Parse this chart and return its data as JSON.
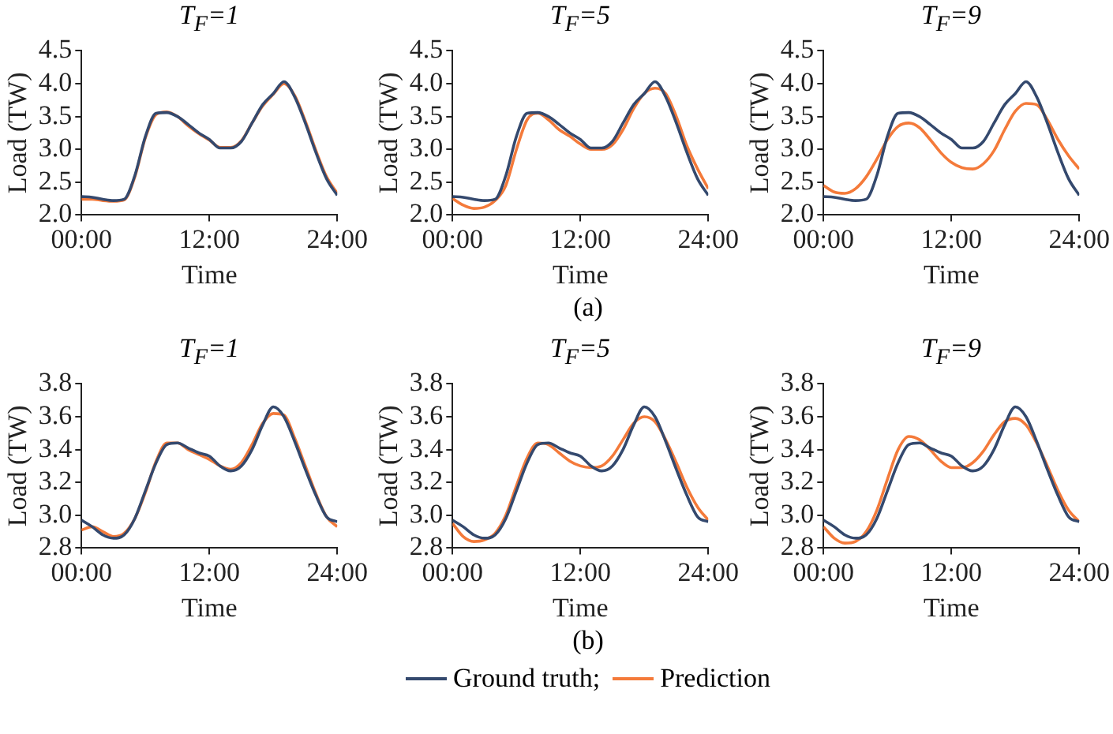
{
  "chart_data": [
    {
      "type": "line",
      "title": "T$_{F}$=1",
      "xlabel": "Time",
      "ylabel": "Load (TW)",
      "x": [
        0,
        1,
        2,
        3,
        4,
        5,
        6,
        7,
        8,
        9,
        10,
        11,
        12,
        13,
        14,
        15,
        16,
        17,
        18,
        19,
        20,
        21,
        22,
        23,
        24
      ],
      "xlim": [
        0,
        24
      ],
      "xticks": [
        {
          "value": 0,
          "label": "00:00"
        },
        {
          "value": 12,
          "label": "12:00"
        },
        {
          "value": 24,
          "label": "24:00"
        }
      ],
      "ylim": [
        2.0,
        4.5
      ],
      "yticks": [
        {
          "value": 2.0,
          "label": "2.0"
        },
        {
          "value": 2.5,
          "label": "2.5"
        },
        {
          "value": 3.0,
          "label": "3.0"
        },
        {
          "value": 3.5,
          "label": "3.5"
        },
        {
          "value": 4.0,
          "label": "4.0"
        },
        {
          "value": 4.5,
          "label": "4.5"
        }
      ],
      "grid": false,
      "series": [
        {
          "color": "#34496e",
          "values": [
            2.28,
            2.27,
            2.24,
            2.22,
            2.24,
            2.6,
            3.2,
            3.55,
            3.56,
            3.5,
            3.38,
            3.25,
            3.15,
            3.02,
            3.02,
            3.12,
            3.4,
            3.68,
            3.85,
            4.03,
            3.8,
            3.4,
            2.95,
            2.55,
            2.3
          ]
        },
        {
          "color": "#f47a3a",
          "values": [
            2.24,
            2.24,
            2.22,
            2.21,
            2.23,
            2.58,
            3.18,
            3.53,
            3.57,
            3.5,
            3.36,
            3.24,
            3.14,
            3.03,
            3.03,
            3.13,
            3.4,
            3.66,
            3.84,
            4.0,
            3.82,
            3.43,
            2.98,
            2.58,
            2.33
          ]
        }
      ]
    },
    {
      "type": "line",
      "title": "T$_{F}$=5",
      "xlabel": "Time",
      "ylabel": "Load (TW)",
      "x": [
        0,
        1,
        2,
        3,
        4,
        5,
        6,
        7,
        8,
        9,
        10,
        11,
        12,
        13,
        14,
        15,
        16,
        17,
        18,
        19,
        20,
        21,
        22,
        23,
        24
      ],
      "xlim": [
        0,
        24
      ],
      "xticks": [
        {
          "value": 0,
          "label": "00:00"
        },
        {
          "value": 12,
          "label": "12:00"
        },
        {
          "value": 24,
          "label": "24:00"
        }
      ],
      "ylim": [
        2.0,
        4.5
      ],
      "yticks": [
        {
          "value": 2.0,
          "label": "2.0"
        },
        {
          "value": 2.5,
          "label": "2.5"
        },
        {
          "value": 3.0,
          "label": "3.0"
        },
        {
          "value": 3.5,
          "label": "3.5"
        },
        {
          "value": 4.0,
          "label": "4.0"
        },
        {
          "value": 4.5,
          "label": "4.5"
        }
      ],
      "grid": false,
      "annotations": [
        "(a)"
      ],
      "series": [
        {
          "color": "#34496e",
          "values": [
            2.28,
            2.27,
            2.24,
            2.22,
            2.24,
            2.6,
            3.2,
            3.55,
            3.56,
            3.5,
            3.38,
            3.25,
            3.15,
            3.02,
            3.02,
            3.12,
            3.4,
            3.68,
            3.85,
            4.03,
            3.8,
            3.4,
            2.95,
            2.55,
            2.3
          ]
        },
        {
          "color": "#f47a3a",
          "values": [
            2.25,
            2.15,
            2.1,
            2.12,
            2.22,
            2.45,
            3.0,
            3.45,
            3.55,
            3.45,
            3.3,
            3.2,
            3.08,
            3.0,
            3.0,
            3.07,
            3.3,
            3.62,
            3.85,
            3.93,
            3.85,
            3.5,
            3.05,
            2.7,
            2.4
          ]
        }
      ]
    },
    {
      "type": "line",
      "title": "T$_{F}$=9",
      "xlabel": "Time",
      "ylabel": "Load (TW)",
      "x": [
        0,
        1,
        2,
        3,
        4,
        5,
        6,
        7,
        8,
        9,
        10,
        11,
        12,
        13,
        14,
        15,
        16,
        17,
        18,
        19,
        20,
        21,
        22,
        23,
        24
      ],
      "xlim": [
        0,
        24
      ],
      "xticks": [
        {
          "value": 0,
          "label": "00:00"
        },
        {
          "value": 12,
          "label": "12:00"
        },
        {
          "value": 24,
          "label": "24:00"
        }
      ],
      "ylim": [
        2.0,
        4.5
      ],
      "yticks": [
        {
          "value": 2.0,
          "label": "2.0"
        },
        {
          "value": 2.5,
          "label": "2.5"
        },
        {
          "value": 3.0,
          "label": "3.0"
        },
        {
          "value": 3.5,
          "label": "3.5"
        },
        {
          "value": 4.0,
          "label": "4.0"
        },
        {
          "value": 4.5,
          "label": "4.5"
        }
      ],
      "grid": false,
      "series": [
        {
          "color": "#34496e",
          "values": [
            2.28,
            2.27,
            2.24,
            2.22,
            2.24,
            2.6,
            3.2,
            3.55,
            3.56,
            3.5,
            3.38,
            3.25,
            3.15,
            3.02,
            3.02,
            3.12,
            3.4,
            3.68,
            3.85,
            4.03,
            3.8,
            3.4,
            2.95,
            2.55,
            2.3
          ]
        },
        {
          "color": "#f47a3a",
          "values": [
            2.45,
            2.35,
            2.33,
            2.4,
            2.58,
            2.85,
            3.15,
            3.35,
            3.4,
            3.33,
            3.15,
            2.95,
            2.8,
            2.72,
            2.7,
            2.78,
            2.98,
            3.3,
            3.58,
            3.7,
            3.68,
            3.45,
            3.15,
            2.9,
            2.7
          ]
        }
      ]
    },
    {
      "type": "line",
      "title": "T$_{F}$=1",
      "xlabel": "Time",
      "ylabel": "Load (TW)",
      "x": [
        0,
        1,
        2,
        3,
        4,
        5,
        6,
        7,
        8,
        9,
        10,
        11,
        12,
        13,
        14,
        15,
        16,
        17,
        18,
        19,
        20,
        21,
        22,
        23,
        24
      ],
      "xlim": [
        0,
        24
      ],
      "xticks": [
        {
          "value": 0,
          "label": "00:00"
        },
        {
          "value": 12,
          "label": "12:00"
        },
        {
          "value": 24,
          "label": "24:00"
        }
      ],
      "ylim": [
        2.8,
        3.8
      ],
      "yticks": [
        {
          "value": 2.8,
          "label": "2.8"
        },
        {
          "value": 3.0,
          "label": "3.0"
        },
        {
          "value": 3.2,
          "label": "3.2"
        },
        {
          "value": 3.4,
          "label": "3.4"
        },
        {
          "value": 3.6,
          "label": "3.6"
        },
        {
          "value": 3.8,
          "label": "3.8"
        }
      ],
      "grid": false,
      "series": [
        {
          "color": "#34496e",
          "values": [
            2.97,
            2.93,
            2.88,
            2.86,
            2.88,
            2.98,
            3.15,
            3.32,
            3.43,
            3.44,
            3.41,
            3.38,
            3.36,
            3.3,
            3.27,
            3.3,
            3.4,
            3.55,
            3.66,
            3.6,
            3.45,
            3.28,
            3.12,
            2.99,
            2.96
          ]
        },
        {
          "color": "#f47a3a",
          "values": [
            2.91,
            2.93,
            2.9,
            2.87,
            2.89,
            2.98,
            3.14,
            3.33,
            3.44,
            3.44,
            3.4,
            3.37,
            3.34,
            3.3,
            3.28,
            3.32,
            3.43,
            3.56,
            3.62,
            3.61,
            3.47,
            3.3,
            3.13,
            2.99,
            2.93
          ]
        }
      ]
    },
    {
      "type": "line",
      "title": "T$_{F}$=5",
      "xlabel": "Time",
      "ylabel": "Load (TW)",
      "x": [
        0,
        1,
        2,
        3,
        4,
        5,
        6,
        7,
        8,
        9,
        10,
        11,
        12,
        13,
        14,
        15,
        16,
        17,
        18,
        19,
        20,
        21,
        22,
        23,
        24
      ],
      "xlim": [
        0,
        24
      ],
      "xticks": [
        {
          "value": 0,
          "label": "00:00"
        },
        {
          "value": 12,
          "label": "12:00"
        },
        {
          "value": 24,
          "label": "24:00"
        }
      ],
      "ylim": [
        2.8,
        3.8
      ],
      "yticks": [
        {
          "value": 2.8,
          "label": "2.8"
        },
        {
          "value": 3.0,
          "label": "3.0"
        },
        {
          "value": 3.2,
          "label": "3.2"
        },
        {
          "value": 3.4,
          "label": "3.4"
        },
        {
          "value": 3.6,
          "label": "3.6"
        },
        {
          "value": 3.8,
          "label": "3.8"
        }
      ],
      "grid": false,
      "annotations": [
        "(b)"
      ],
      "legend": "bottom",
      "series": [
        {
          "name": "Ground truth;",
          "color": "#34496e",
          "values": [
            2.97,
            2.93,
            2.88,
            2.86,
            2.88,
            2.98,
            3.15,
            3.32,
            3.43,
            3.44,
            3.41,
            3.38,
            3.36,
            3.3,
            3.27,
            3.3,
            3.4,
            3.55,
            3.66,
            3.6,
            3.45,
            3.28,
            3.12,
            2.99,
            2.96
          ]
        },
        {
          "name": "Prediction",
          "color": "#f47a3a",
          "values": [
            2.95,
            2.87,
            2.84,
            2.85,
            2.89,
            3.0,
            3.18,
            3.35,
            3.44,
            3.43,
            3.38,
            3.33,
            3.3,
            3.29,
            3.3,
            3.36,
            3.46,
            3.56,
            3.6,
            3.57,
            3.46,
            3.32,
            3.17,
            3.05,
            2.97
          ]
        }
      ]
    },
    {
      "type": "line",
      "title": "T$_{F}$=9",
      "xlabel": "Time",
      "ylabel": "Load (TW)",
      "x": [
        0,
        1,
        2,
        3,
        4,
        5,
        6,
        7,
        8,
        9,
        10,
        11,
        12,
        13,
        14,
        15,
        16,
        17,
        18,
        19,
        20,
        21,
        22,
        23,
        24
      ],
      "xlim": [
        0,
        24
      ],
      "xticks": [
        {
          "value": 0,
          "label": "00:00"
        },
        {
          "value": 12,
          "label": "12:00"
        },
        {
          "value": 24,
          "label": "24:00"
        }
      ],
      "ylim": [
        2.8,
        3.8
      ],
      "yticks": [
        {
          "value": 2.8,
          "label": "2.8"
        },
        {
          "value": 3.0,
          "label": "3.0"
        },
        {
          "value": 3.2,
          "label": "3.2"
        },
        {
          "value": 3.4,
          "label": "3.4"
        },
        {
          "value": 3.6,
          "label": "3.6"
        },
        {
          "value": 3.8,
          "label": "3.8"
        }
      ],
      "grid": false,
      "series": [
        {
          "color": "#34496e",
          "values": [
            2.97,
            2.93,
            2.88,
            2.86,
            2.88,
            2.98,
            3.15,
            3.32,
            3.43,
            3.44,
            3.41,
            3.38,
            3.36,
            3.3,
            3.27,
            3.3,
            3.4,
            3.55,
            3.66,
            3.6,
            3.45,
            3.28,
            3.12,
            2.99,
            2.96
          ]
        },
        {
          "color": "#f47a3a",
          "values": [
            2.93,
            2.86,
            2.83,
            2.84,
            2.9,
            3.03,
            3.22,
            3.4,
            3.48,
            3.46,
            3.4,
            3.33,
            3.29,
            3.29,
            3.32,
            3.39,
            3.49,
            3.57,
            3.59,
            3.55,
            3.44,
            3.3,
            3.15,
            3.03,
            2.96
          ]
        }
      ]
    }
  ]
}
